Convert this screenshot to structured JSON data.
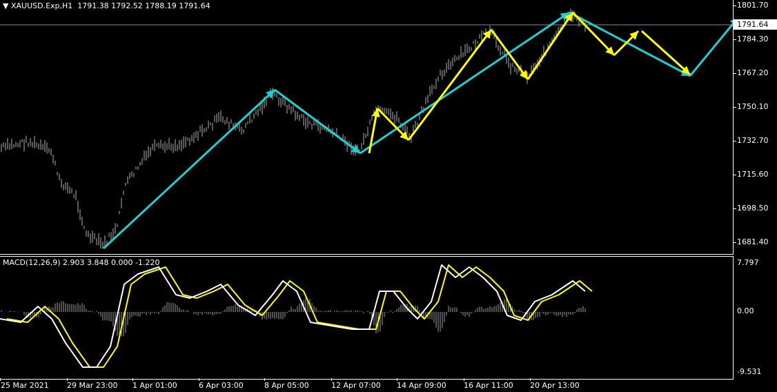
{
  "header": {
    "symbol": "XAUUSD.Exp,H1",
    "open": "1791.38",
    "high": "1792.52",
    "low": "1788.19",
    "close": "1791.64"
  },
  "price_axis": {
    "labels": [
      "1801.70",
      "1784.30",
      "1767.20",
      "1750.10",
      "1732.70",
      "1715.60",
      "1698.50",
      "1681.40"
    ],
    "current": "1791.64"
  },
  "macd": {
    "label": "MACD(12,26,9)",
    "values": [
      "2.903",
      "3.848",
      "0.000",
      "-1.220"
    ],
    "axis": [
      "7.797",
      "0.00",
      "-9.531"
    ]
  },
  "time_axis": [
    "25 Mar 2021",
    "29 Mar 23:00",
    "1 Apr 01:00",
    "6 Apr 03:00",
    "8 Apr 05:00",
    "12 Apr 07:00",
    "14 Apr 09:00",
    "16 Apr 11:00",
    "20 Apr 13:00"
  ],
  "colors": {
    "bars": "#b4b4b4",
    "trend_arrows": "#20d0d0",
    "wave_arrows": "#ffff00",
    "macd_main": "#ffffff",
    "macd_signal": "#ffff00",
    "price_line": "#7f8fa6"
  }
}
